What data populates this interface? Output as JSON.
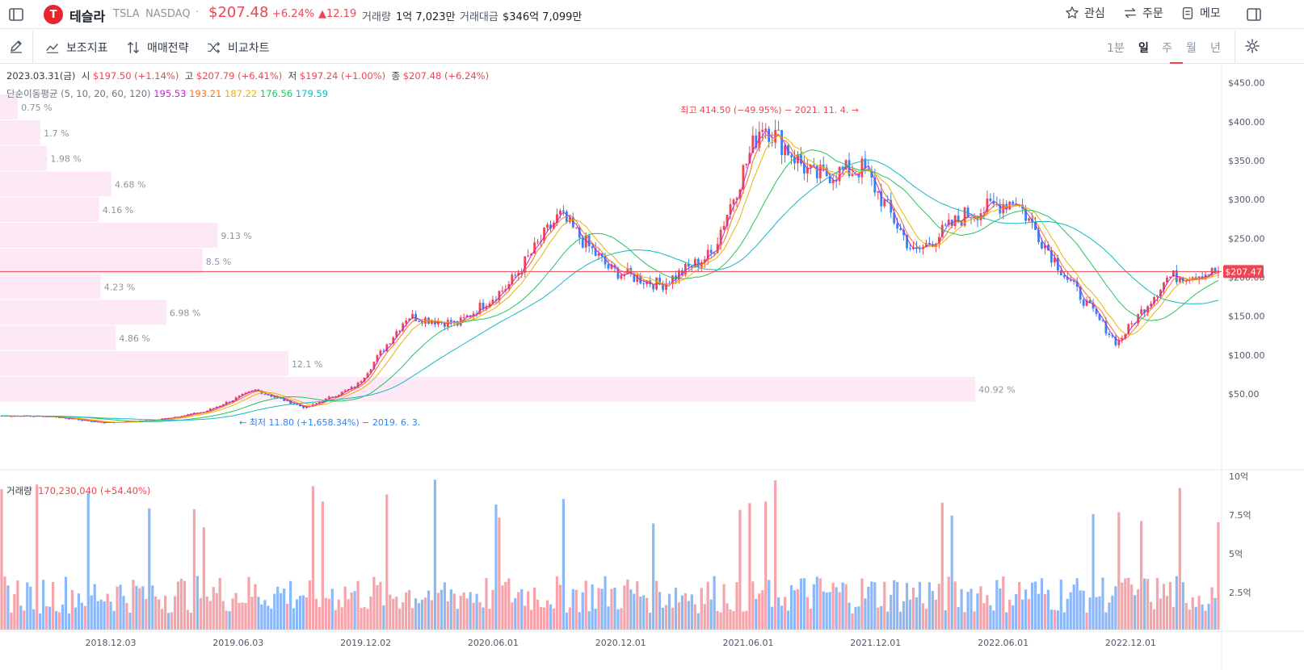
{
  "header": {
    "name": "테슬라",
    "ticker": "TSLA",
    "exchange": "NASDAQ",
    "price": "$207.48",
    "change_pct": "+6.24%",
    "change_abs": "▲12.19",
    "volume_label": "거래량",
    "volume_value": "1억 7,023만",
    "turnover_label": "거래대금",
    "turnover_value": "$346억 7,099만",
    "actions": [
      "관심",
      "주문",
      "메모"
    ]
  },
  "toolbar": {
    "tools": [
      "보조지표",
      "매매전략",
      "비교차트"
    ],
    "periods": [
      "1분",
      "일",
      "주",
      "월",
      "년"
    ],
    "active_period": "일"
  },
  "ohlc": {
    "date": "2023.03.31(금)",
    "open_label": "시",
    "open": "$197.50 (+1.14%)",
    "high_label": "고",
    "high": "$207.79 (+6.41%)",
    "low_label": "저",
    "low": "$197.24 (+1.00%)",
    "close_label": "종",
    "close": "$207.48 (+6.24%)"
  },
  "ma": {
    "label": "단순이동평균",
    "params": "(5, 10, 20, 60, 120)",
    "values": [
      "195.53",
      "193.21",
      "187.22",
      "176.56",
      "179.59"
    ]
  },
  "colors": {
    "up": "#f04452",
    "down": "#3182f6",
    "ma5": "#c026d3",
    "ma10": "#f97316",
    "ma20": "#eab308",
    "ma60": "#22c55e",
    "ma120": "#14b8c4",
    "profile": "#fde8f6"
  },
  "chart_data": {
    "type": "line",
    "title": "",
    "xlabel": "",
    "ylabel": "",
    "ylim": [
      0,
      470
    ],
    "y_ticks": [
      "$450.00",
      "$400.00",
      "$350.00",
      "$300.00",
      "$250.00",
      "$200.00",
      "$150.00",
      "$100.00",
      "$50.00"
    ],
    "x_ticks": [
      "2018.12.03",
      "2019.06.03",
      "2019.12.02",
      "2020.06.01",
      "2020.12.01",
      "2021.06.01",
      "2021.12.01",
      "2022.06.01",
      "2022.12.01"
    ],
    "series": [
      {
        "x": [
          "2018.06",
          "2018.12",
          "2019.06",
          "2019.09",
          "2019.12",
          "2020.02",
          "2020.03",
          "2020.06",
          "2020.08",
          "2020.09",
          "2020.11",
          "2021.01",
          "2021.03",
          "2021.05",
          "2021.08",
          "2021.11",
          "2022.01",
          "2022.03",
          "2022.05",
          "2022.07",
          "2022.09",
          "2022.11",
          "2023.01",
          "2023.02",
          "2023.03"
        ],
        "values": [
          22,
          21,
          13,
          16,
          27,
          55,
          32,
          60,
          150,
          140,
          190,
          280,
          210,
          190,
          230,
          400,
          330,
          340,
          230,
          280,
          300,
          200,
          115,
          200,
          207
        ]
      }
    ],
    "current_price_tag": "$207.47",
    "current_price": 207.47,
    "high_note": "최고 414.50 (−49.95%) − 2021. 11. 4. →",
    "low_note": "← 최저 11.80 (+1,658.34%) − 2019. 6. 3.",
    "volume_profile": [
      {
        "price_top": 435,
        "price_bottom": 402,
        "pct": 0.75,
        "label": "0.75 %"
      },
      {
        "price_top": 402,
        "price_bottom": 369,
        "pct": 1.7,
        "label": "1.7 %"
      },
      {
        "price_top": 369,
        "price_bottom": 336,
        "pct": 1.98,
        "label": "1.98 %"
      },
      {
        "price_top": 336,
        "price_bottom": 303,
        "pct": 4.68,
        "label": "4.68 %"
      },
      {
        "price_top": 303,
        "price_bottom": 270,
        "pct": 4.16,
        "label": "4.16 %"
      },
      {
        "price_top": 270,
        "price_bottom": 237,
        "pct": 9.13,
        "label": "9.13 %"
      },
      {
        "price_top": 237,
        "price_bottom": 204,
        "pct": 8.5,
        "label": "8.5 %"
      },
      {
        "price_top": 204,
        "price_bottom": 171,
        "pct": 4.23,
        "label": "4.23 %"
      },
      {
        "price_top": 171,
        "price_bottom": 138,
        "pct": 6.98,
        "label": "6.98 %"
      },
      {
        "price_top": 138,
        "price_bottom": 105,
        "pct": 4.86,
        "label": "4.86 %"
      },
      {
        "price_top": 105,
        "price_bottom": 72,
        "pct": 12.1,
        "label": "12.1 %"
      },
      {
        "price_top": 72,
        "price_bottom": 39,
        "pct": 40.92,
        "label": "40.92 %"
      }
    ],
    "volume": {
      "label": "거래량",
      "value": "170,230,040 (+54.40%)",
      "y_ticks": [
        "10억",
        "7.5억",
        "5억",
        "2.5억"
      ]
    }
  }
}
